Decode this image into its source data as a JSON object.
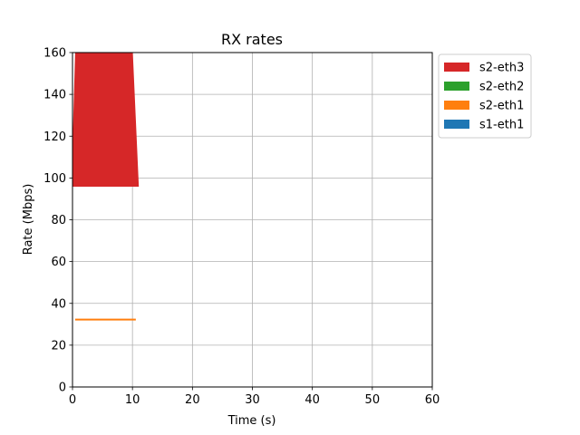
{
  "chart_data": {
    "type": "area",
    "title": "RX rates",
    "xlabel": "Time (s)",
    "ylabel": "Rate (Mbps)",
    "xlim": [
      0,
      60
    ],
    "ylim": [
      0,
      160
    ],
    "xticks": [
      0,
      10,
      20,
      30,
      40,
      50,
      60
    ],
    "yticks": [
      0,
      20,
      40,
      60,
      80,
      100,
      120,
      140,
      160
    ],
    "grid": true,
    "legend_position": "upper-right-outside",
    "series": [
      {
        "name": "s1-eth1",
        "color": "#1f77b4",
        "x": [
          0.5,
          11
        ],
        "lower": [
          0,
          0
        ],
        "upper": [
          0,
          0
        ]
      },
      {
        "name": "s2-eth1",
        "color": "#ff7f0e",
        "x": [
          0.5,
          10.5
        ],
        "lower": [
          32,
          32
        ],
        "upper": [
          32.5,
          32.5
        ]
      },
      {
        "name": "s2-eth2",
        "color": "#2ca02c",
        "x": [
          0.5,
          11
        ],
        "lower": [
          96,
          96
        ],
        "upper": [
          96,
          96
        ]
      },
      {
        "name": "s2-eth3",
        "color": "#d62728",
        "x": [
          0,
          0.5,
          10,
          11
        ],
        "lower": [
          96,
          96,
          96,
          96
        ],
        "upper": [
          110,
          160,
          160,
          96
        ]
      }
    ],
    "legend_order": [
      "s2-eth3",
      "s2-eth2",
      "s2-eth1",
      "s1-eth1"
    ]
  }
}
